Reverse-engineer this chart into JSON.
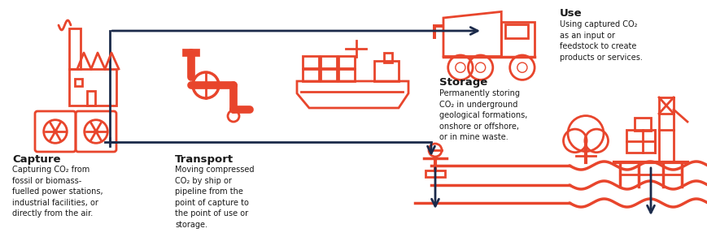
{
  "bg_color": "#ffffff",
  "red": "#E8452C",
  "navy": "#1B2A4A",
  "dark_text": "#1a1a1a",
  "fig_width": 8.7,
  "fig_height": 2.92,
  "capture_label": "Capture",
  "capture_desc": "Capturing CO₂ from\nfossil or biomass-\nfuelled power stations,\nindustrial facilities, or\ndirectly from the air.",
  "transport_label": "Transport",
  "transport_desc": "Moving compressed\nCO₂ by ship or\npipeline from the\npoint of capture to\nthe point of use or\nstorage.",
  "storage_label": "Storage",
  "storage_desc": "Permanently storing\nCO₂ in underground\ngeological formations,\nonshore or offshore,\nor in mine waste.",
  "use_label": "Use",
  "use_desc": "Using captured CO₂\nas an input or\nfeedstock to create\nproducts or services."
}
